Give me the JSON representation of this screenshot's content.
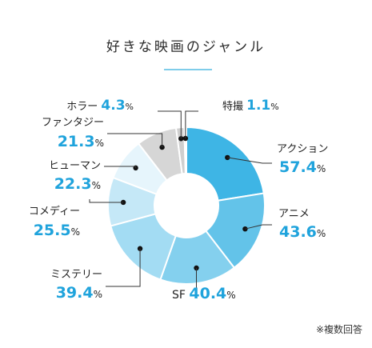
{
  "title": "好きな映画のジャンル",
  "note": "※複数回答",
  "chart_data": {
    "type": "pie",
    "variant": "donut",
    "unit": "%",
    "categories": [
      "アクション",
      "アニメ",
      "SF",
      "ミステリー",
      "コメディー",
      "ヒューマン",
      "ファンタジー",
      "ホラー",
      "特撮"
    ],
    "values": [
      57.4,
      43.6,
      40.4,
      39.4,
      25.5,
      22.3,
      21.3,
      4.3,
      1.1
    ],
    "colors": [
      "#3eb5e5",
      "#63c3e9",
      "#84d0ee",
      "#a3dcf3",
      "#c5e8f7",
      "#e6f5fc",
      "#d6d6d6",
      "#cfcfcf",
      "#c8c8c8"
    ]
  }
}
